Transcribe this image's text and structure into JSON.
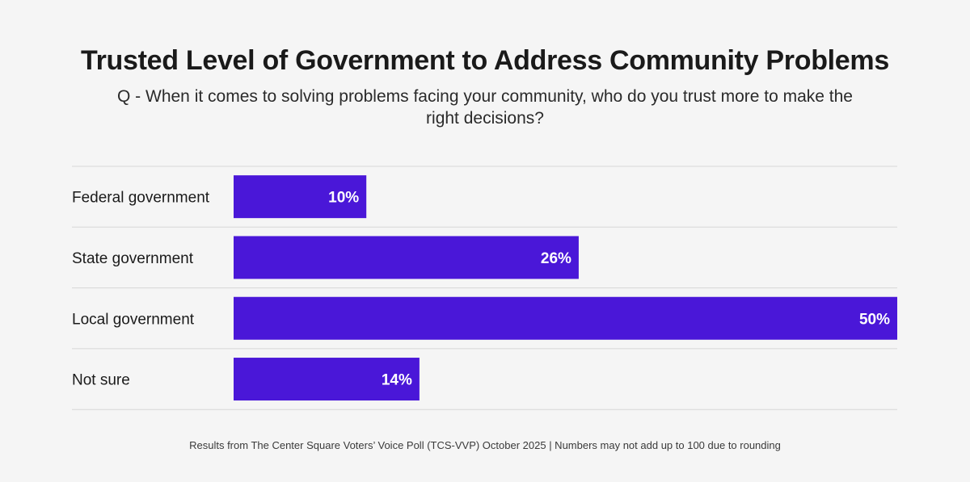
{
  "chart_data": {
    "type": "bar",
    "orientation": "horizontal",
    "title": "Trusted Level of Government to Address Community Problems",
    "subtitle": "Q - When it comes to solving problems facing your community, who do you trust more to make the right decisions?",
    "categories": [
      "Federal government",
      "State government",
      "Local government",
      "Not sure"
    ],
    "values": [
      10,
      26,
      50,
      14
    ],
    "data_labels": [
      "10%",
      "26%",
      "50%",
      "14%"
    ],
    "xlim": [
      0,
      50
    ],
    "grid": false,
    "bar_color": "#4a17d8",
    "footer": "Results from The Center Square Voters’ Voice Poll (TCS-VVP) October 2025 | Numbers may not add up to 100 due to rounding"
  }
}
